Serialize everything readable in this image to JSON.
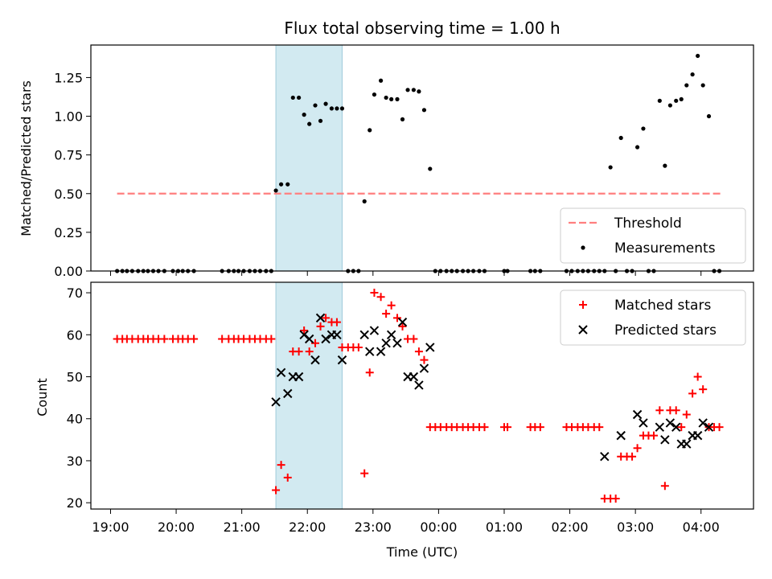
{
  "chart_data": [
    {
      "type": "scatter",
      "title": "Flux total observing time = 1.00 h",
      "xlabel": "",
      "ylabel": "Matched/Predicted stars",
      "xlim": [
        18.7,
        28.8
      ],
      "ylim": [
        0,
        1.46
      ],
      "yticks": [
        0,
        0.25,
        0.5,
        0.75,
        1.0,
        1.25
      ],
      "ytick_labels": [
        "0.00",
        "0.25",
        "0.50",
        "0.75",
        "1.00",
        "1.25"
      ],
      "xticks": [
        19,
        20,
        21,
        22,
        23,
        24,
        25,
        26,
        27,
        28
      ],
      "highlight_span": [
        21.52,
        22.53
      ],
      "highlight_color": "#add8e6",
      "legend": {
        "placement": "lower-right",
        "entries": [
          "Threshold",
          "Measurements"
        ]
      },
      "series": [
        {
          "name": "Threshold",
          "kind": "dashed-line",
          "color": "#ff7f7f",
          "x": [
            19.1,
            28.3
          ],
          "y": [
            0.5,
            0.5
          ]
        },
        {
          "name": "Measurements",
          "kind": "dot",
          "color": "#000000",
          "x": [
            19.1,
            19.18,
            19.25,
            19.33,
            19.42,
            19.5,
            19.57,
            19.65,
            19.73,
            19.82,
            19.95,
            20.03,
            20.1,
            20.18,
            20.27,
            20.7,
            20.8,
            20.88,
            20.95,
            21.03,
            21.12,
            21.2,
            21.28,
            21.37,
            21.45,
            21.52,
            21.6,
            21.7,
            21.78,
            21.87,
            21.95,
            22.03,
            22.12,
            22.2,
            22.28,
            22.37,
            22.45,
            22.53,
            22.62,
            22.7,
            22.78,
            22.87,
            22.95,
            23.02,
            23.12,
            23.2,
            23.28,
            23.37,
            23.45,
            23.53,
            23.62,
            23.7,
            23.78,
            23.87,
            23.95,
            24.03,
            24.12,
            24.2,
            24.28,
            24.37,
            24.45,
            24.53,
            24.62,
            24.7,
            25.0,
            25.05,
            25.4,
            25.47,
            25.55,
            25.95,
            26.03,
            26.12,
            26.2,
            26.28,
            26.37,
            26.45,
            26.53,
            26.62,
            26.7,
            26.78,
            26.87,
            26.95,
            27.03,
            27.12,
            27.2,
            27.28,
            27.37,
            27.45,
            27.53,
            27.62,
            27.7,
            27.78,
            27.87,
            27.95,
            28.03,
            28.12,
            28.2,
            28.28
          ],
          "y": [
            0,
            0,
            0,
            0,
            0,
            0,
            0,
            0,
            0,
            0,
            0,
            0,
            0,
            0,
            0,
            0,
            0,
            0,
            0,
            0,
            0,
            0,
            0,
            0,
            0,
            0.52,
            0.56,
            0.56,
            1.12,
            1.12,
            1.01,
            0.95,
            1.07,
            0.97,
            1.08,
            1.05,
            1.05,
            1.05,
            0,
            0,
            0,
            0.45,
            0.91,
            1.14,
            1.23,
            1.12,
            1.11,
            1.11,
            0.98,
            1.17,
            1.17,
            1.16,
            1.04,
            0.66,
            0,
            0,
            0,
            0,
            0,
            0,
            0,
            0,
            0,
            0,
            0,
            0,
            0,
            0,
            0,
            0,
            0,
            0,
            0,
            0,
            0,
            0,
            0,
            0.67,
            0,
            0.86,
            0,
            0,
            0.8,
            0.92,
            0,
            0,
            1.1,
            0.68,
            1.07,
            1.1,
            1.11,
            1.2,
            1.27,
            1.39,
            1.2,
            1.0,
            0,
            0
          ]
        }
      ]
    },
    {
      "type": "scatter",
      "title": "",
      "xlabel": "Time (UTC)",
      "ylabel": "Count",
      "xlim": [
        18.7,
        28.8
      ],
      "ylim": [
        18.5,
        72.5
      ],
      "yticks": [
        20,
        30,
        40,
        50,
        60,
        70
      ],
      "ytick_labels": [
        "20",
        "30",
        "40",
        "50",
        "60",
        "70"
      ],
      "xticks": [
        19,
        20,
        21,
        22,
        23,
        24,
        25,
        26,
        27,
        28
      ],
      "xtick_labels": [
        "19:00",
        "20:00",
        "21:00",
        "22:00",
        "23:00",
        "00:00",
        "01:00",
        "02:00",
        "03:00",
        "04:00"
      ],
      "highlight_span": [
        21.52,
        22.53
      ],
      "highlight_color": "#add8e6",
      "legend": {
        "placement": "top-right",
        "entries": [
          "Matched stars",
          "Predicted stars"
        ]
      },
      "series": [
        {
          "name": "Matched stars",
          "kind": "plus",
          "color": "#ff0000",
          "x": [
            19.1,
            19.18,
            19.25,
            19.33,
            19.42,
            19.5,
            19.57,
            19.65,
            19.73,
            19.82,
            19.95,
            20.03,
            20.1,
            20.18,
            20.27,
            20.7,
            20.8,
            20.88,
            20.95,
            21.03,
            21.12,
            21.2,
            21.28,
            21.37,
            21.45,
            21.52,
            21.6,
            21.7,
            21.78,
            21.87,
            21.95,
            22.03,
            22.12,
            22.2,
            22.28,
            22.37,
            22.45,
            22.53,
            22.62,
            22.7,
            22.78,
            22.87,
            22.95,
            23.02,
            23.12,
            23.2,
            23.28,
            23.37,
            23.45,
            23.53,
            23.62,
            23.7,
            23.78,
            23.87,
            23.95,
            24.03,
            24.12,
            24.2,
            24.28,
            24.37,
            24.45,
            24.53,
            24.62,
            24.7,
            25.0,
            25.05,
            25.4,
            25.47,
            25.55,
            25.95,
            26.03,
            26.12,
            26.2,
            26.28,
            26.37,
            26.45,
            26.53,
            26.62,
            26.7,
            26.78,
            26.87,
            26.95,
            27.03,
            27.12,
            27.2,
            27.28,
            27.37,
            27.45,
            27.53,
            27.62,
            27.7,
            27.78,
            27.87,
            27.95,
            28.03,
            28.12,
            28.2,
            28.28
          ],
          "y": [
            59,
            59,
            59,
            59,
            59,
            59,
            59,
            59,
            59,
            59,
            59,
            59,
            59,
            59,
            59,
            59,
            59,
            59,
            59,
            59,
            59,
            59,
            59,
            59,
            59,
            23,
            29,
            26,
            56,
            56,
            61,
            56,
            58,
            62,
            64,
            63,
            63,
            57,
            57,
            57,
            57,
            27,
            51,
            70,
            69,
            65,
            67,
            64,
            62,
            59,
            59,
            56,
            54,
            38,
            38,
            38,
            38,
            38,
            38,
            38,
            38,
            38,
            38,
            38,
            38,
            38,
            38,
            38,
            38,
            38,
            38,
            38,
            38,
            38,
            38,
            38,
            21,
            21,
            21,
            31,
            31,
            31,
            33,
            36,
            36,
            36,
            42,
            24,
            42,
            42,
            38,
            41,
            46,
            50,
            47,
            38,
            38,
            38
          ]
        },
        {
          "name": "Predicted stars",
          "kind": "x",
          "color": "#000000",
          "x": [
            21.52,
            21.6,
            21.7,
            21.78,
            21.87,
            21.95,
            22.03,
            22.12,
            22.2,
            22.28,
            22.37,
            22.45,
            22.53,
            22.87,
            22.95,
            23.02,
            23.12,
            23.2,
            23.28,
            23.37,
            23.45,
            23.53,
            23.62,
            23.7,
            23.78,
            23.87,
            26.53,
            26.78,
            27.03,
            27.12,
            27.37,
            27.45,
            27.53,
            27.62,
            27.7,
            27.78,
            27.87,
            27.95,
            28.03,
            28.12
          ],
          "y": [
            44,
            51,
            46,
            50,
            50,
            60,
            59,
            54,
            64,
            59,
            60,
            60,
            54,
            60,
            56,
            61,
            56,
            58,
            60,
            58,
            63,
            50,
            50,
            48,
            52,
            57,
            31,
            36,
            41,
            39,
            38,
            35,
            39,
            38,
            34,
            34,
            36,
            36,
            39,
            38
          ]
        }
      ]
    }
  ]
}
